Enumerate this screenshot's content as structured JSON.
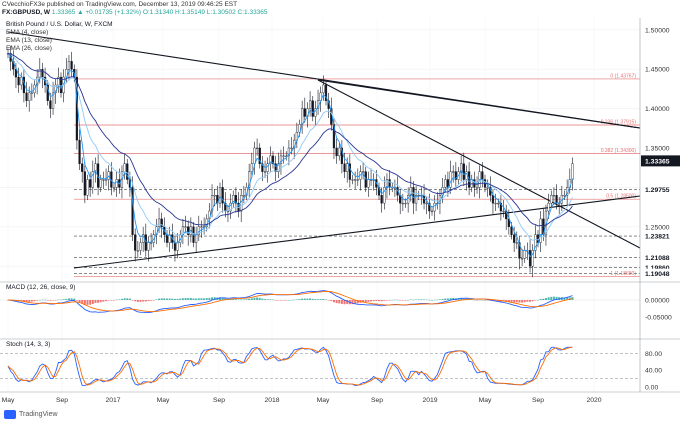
{
  "header": {
    "publisher_line": "CVecchioFX3e published on TradingView.com, December 13, 2019 09:46:25 EST",
    "symbol": "FX:GBPUSD, W",
    "quote": "1.33365 ▲ +0.01735 (+1.32%) O:1.31340 H:1.35149 L:1.30502 C:1.33365"
  },
  "footer": {
    "brand": "TradingView"
  },
  "chart_data": [
    {
      "type": "line",
      "title": "British Pound / U.S. Dollar, W, FXCM",
      "legend": [
        "EMA (4, close)",
        "EMA (13, close)",
        "EMA (26, close)"
      ],
      "x_ticks": [
        "May",
        "Sep",
        "2017",
        "May",
        "Sep",
        "2018",
        "May",
        "Sep",
        "2019",
        "May",
        "Sep",
        "2020"
      ],
      "y_ticks": [
        "1.50000",
        "1.45000",
        "1.40000",
        "1.35000",
        "1.30000",
        "1.25000",
        "1.20000"
      ],
      "ylim": [
        1.185,
        1.515
      ],
      "levels": [
        {
          "value": 1.43767,
          "label": "0 (1.43767)",
          "color": "#e57373",
          "style": "fib"
        },
        {
          "value": 1.37915,
          "label": "0.236 (1.37915)",
          "color": "#e57373",
          "style": "fib"
        },
        {
          "value": 1.343,
          "label": "0.382 (1.34300)",
          "color": "#e57373",
          "style": "fib"
        },
        {
          "value": 1.29755,
          "label": "1.29755",
          "color": "#444444",
          "style": "dashed"
        },
        {
          "value": 1.285,
          "label": "0.5 (1.28500)",
          "color": "#e57373",
          "style": "fib"
        },
        {
          "value": 1.23821,
          "label": "1.23821",
          "color": "#444444",
          "style": "dashed"
        },
        {
          "value": 1.21088,
          "label": "1.21088",
          "color": "#444444",
          "style": "dashed"
        },
        {
          "value": 1.1986,
          "label": "1.19860",
          "color": "#444444",
          "style": "dashed"
        },
        {
          "value": 1.19048,
          "label": "1.19048",
          "color": "#444444",
          "style": "dashed"
        },
        {
          "value": 1.1868,
          "label": "1 (1.18680)",
          "color": "#e57373",
          "style": "fib"
        }
      ],
      "price_badge": {
        "value": 1.33365,
        "label": "1.33365"
      },
      "closes": [
        1.47,
        1.46,
        1.45,
        1.44,
        1.43,
        1.44,
        1.42,
        1.41,
        1.42,
        1.42,
        1.43,
        1.44,
        1.45,
        1.44,
        1.43,
        1.41,
        1.4,
        1.42,
        1.43,
        1.44,
        1.42,
        1.44,
        1.45,
        1.46,
        1.45,
        1.44,
        1.36,
        1.33,
        1.32,
        1.29,
        1.31,
        1.3,
        1.32,
        1.33,
        1.3,
        1.31,
        1.31,
        1.31,
        1.32,
        1.3,
        1.3,
        1.31,
        1.3,
        1.32,
        1.33,
        1.31,
        1.3,
        1.24,
        1.22,
        1.22,
        1.23,
        1.24,
        1.22,
        1.23,
        1.23,
        1.24,
        1.25,
        1.26,
        1.25,
        1.24,
        1.23,
        1.24,
        1.23,
        1.22,
        1.23,
        1.24,
        1.25,
        1.25,
        1.24,
        1.25,
        1.23,
        1.24,
        1.25,
        1.25,
        1.25,
        1.26,
        1.27,
        1.29,
        1.29,
        1.28,
        1.3,
        1.28,
        1.27,
        1.27,
        1.28,
        1.29,
        1.28,
        1.27,
        1.29,
        1.29,
        1.3,
        1.32,
        1.33,
        1.35,
        1.35,
        1.33,
        1.32,
        1.32,
        1.33,
        1.34,
        1.33,
        1.32,
        1.33,
        1.34,
        1.34,
        1.34,
        1.35,
        1.35,
        1.36,
        1.37,
        1.38,
        1.4,
        1.39,
        1.4,
        1.41,
        1.39,
        1.4,
        1.41,
        1.42,
        1.43,
        1.41,
        1.4,
        1.38,
        1.35,
        1.34,
        1.35,
        1.33,
        1.32,
        1.33,
        1.31,
        1.31,
        1.31,
        1.31,
        1.32,
        1.32,
        1.3,
        1.31,
        1.31,
        1.31,
        1.3,
        1.29,
        1.28,
        1.3,
        1.31,
        1.3,
        1.3,
        1.3,
        1.29,
        1.28,
        1.28,
        1.28,
        1.29,
        1.3,
        1.28,
        1.29,
        1.29,
        1.29,
        1.28,
        1.28,
        1.27,
        1.27,
        1.28,
        1.28,
        1.29,
        1.3,
        1.31,
        1.3,
        1.32,
        1.32,
        1.31,
        1.32,
        1.33,
        1.31,
        1.32,
        1.3,
        1.31,
        1.3,
        1.3,
        1.32,
        1.31,
        1.3,
        1.3,
        1.29,
        1.28,
        1.28,
        1.28,
        1.27,
        1.27,
        1.26,
        1.25,
        1.24,
        1.23,
        1.23,
        1.21,
        1.21,
        1.22,
        1.22,
        1.2,
        1.22,
        1.24,
        1.23,
        1.26,
        1.24,
        1.27,
        1.28,
        1.29,
        1.29,
        1.28,
        1.28,
        1.29,
        1.29,
        1.3,
        1.31,
        1.33
      ],
      "ema": {
        "fast": "#2196f3",
        "mid": "#90caf9",
        "slow": "#283593"
      }
    },
    {
      "type": "bar",
      "title": "MACD (12, 26, close, 9)",
      "y_ticks": [
        "0.00000",
        "-0.05000"
      ],
      "colors": {
        "macd": "#2962ff",
        "signal": "#ff6d00",
        "hist_pos": "#26a69a",
        "hist_neg": "#ef5350"
      }
    },
    {
      "type": "line",
      "title": "Stoch (14, 3, 3)",
      "y_ticks": [
        "80.00",
        "40.00",
        "0.00"
      ],
      "ylim": [
        0,
        100
      ],
      "colors": {
        "k": "#2962ff",
        "d": "#ff6d00"
      }
    }
  ]
}
